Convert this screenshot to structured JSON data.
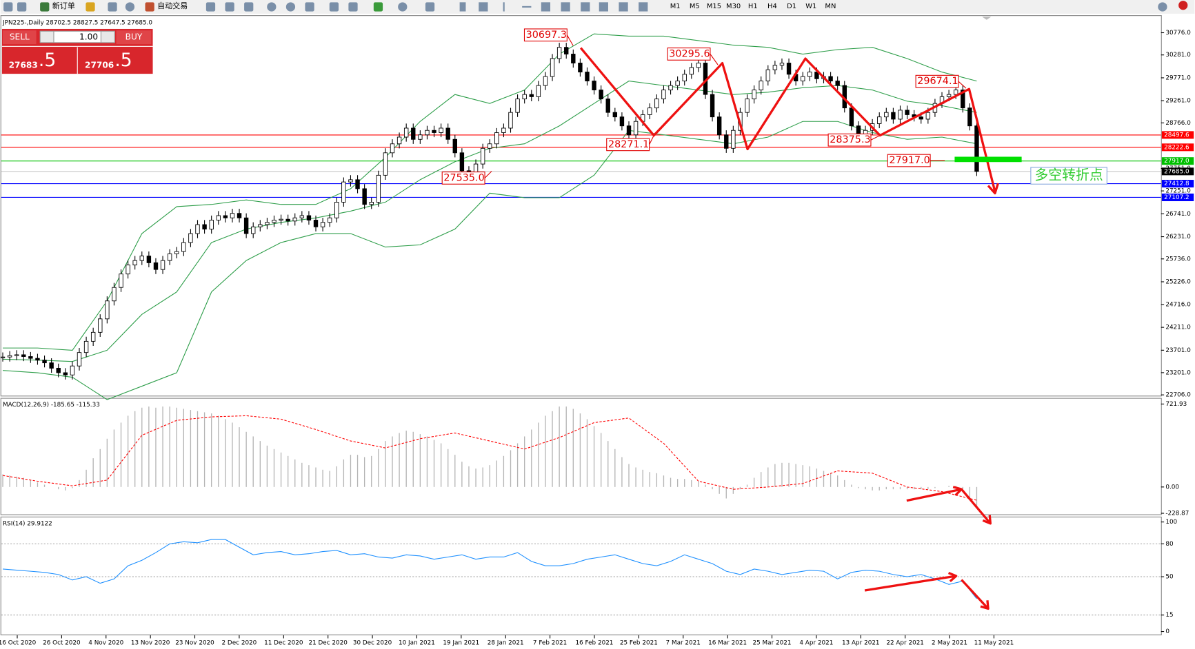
{
  "toolbar": {
    "buttons": [
      "新订单",
      "自动交易"
    ],
    "timeframes": [
      "M1",
      "M5",
      "M15",
      "M30",
      "H1",
      "H4",
      "D1",
      "W1",
      "MN"
    ]
  },
  "trade_panel": {
    "sell": "SELL",
    "lot": "1.00",
    "buy": "BUY",
    "bid_main": "27683",
    "bid_frac": ".5",
    "ask_main": "27706",
    "ask_frac": ".5"
  },
  "chart_data": {
    "type": "candlestick",
    "title": "JPN225-,Daily 28702.5 28827.5 27647.5 27685.0",
    "closes": [
      23550,
      23580,
      23600,
      23560,
      23520,
      23480,
      23420,
      23300,
      23200,
      23150,
      23350,
      23650,
      23900,
      24100,
      24400,
      24800,
      25100,
      25400,
      25600,
      25700,
      25800,
      25650,
      25500,
      25700,
      25850,
      25900,
      26100,
      26300,
      26500,
      26400,
      26600,
      26700,
      26650,
      26750,
      26650,
      26300,
      26450,
      26500,
      26550,
      26600,
      26620,
      26580,
      26650,
      26700,
      26600,
      26450,
      26550,
      26650,
      27000,
      27450,
      27500,
      27300,
      26950,
      27000,
      27600,
      28100,
      28300,
      28450,
      28650,
      28400,
      28500,
      28600,
      28550,
      28650,
      28400,
      28100,
      27700,
      27650,
      27850,
      28200,
      28300,
      28550,
      28650,
      29000,
      29300,
      29400,
      29350,
      29600,
      29800,
      30200,
      30450,
      30300,
      30100,
      29900,
      29700,
      29500,
      29300,
      29000,
      28900,
      28700,
      28500,
      28800,
      28950,
      29100,
      29300,
      29500,
      29600,
      29700,
      29850,
      30000,
      30100,
      29400,
      28900,
      28500,
      28200,
      28600,
      29000,
      29300,
      29500,
      29700,
      29950,
      30050,
      30100,
      29850,
      29700,
      29800,
      29900,
      29750,
      29800,
      29700,
      29600,
      29100,
      28700,
      28500,
      28600,
      28750,
      28900,
      29000,
      28850,
      29050,
      28950,
      28900,
      28850,
      29000,
      29200,
      29350,
      29400,
      29500,
      29100,
      28700,
      27685
    ],
    "ylim": [
      22689,
      31166
    ],
    "yticks": [
      {
        "value": 30776,
        "label": "30776.0"
      },
      {
        "value": 30281,
        "label": "30281.0"
      },
      {
        "value": 29771,
        "label": "29771.0"
      },
      {
        "value": 29261,
        "label": "29261.0"
      },
      {
        "value": 28766,
        "label": "28766.0"
      },
      {
        "value": 27751,
        "label": "27751.0"
      },
      {
        "value": 27251,
        "label": "27251.0"
      },
      {
        "value": 26741,
        "label": "26741.0"
      },
      {
        "value": 26231,
        "label": "26231.0"
      },
      {
        "value": 25736,
        "label": "25736.0"
      },
      {
        "value": 25226,
        "label": "25226.0"
      },
      {
        "value": 24716,
        "label": "24716.0"
      },
      {
        "value": 24211,
        "label": "24211.0"
      },
      {
        "value": 23701,
        "label": "23701.0"
      },
      {
        "value": 23201,
        "label": "23201.0"
      },
      {
        "value": 22706,
        "label": "22706.0"
      }
    ],
    "levels": [
      {
        "value": 28497.6,
        "label": "28497.6",
        "color": "#ff0000"
      },
      {
        "value": 28222.6,
        "label": "28222.6",
        "color": "#ff0000"
      },
      {
        "value": 27917,
        "label": "27917.0",
        "color": "#00c000"
      },
      {
        "value": 27685,
        "label": "27685.0",
        "color": "#000000"
      },
      {
        "value": 27412.8,
        "label": "27412.8",
        "color": "#0000ff"
      },
      {
        "value": 27107.2,
        "label": "27107.2",
        "color": "#0000ff"
      }
    ],
    "bollinger": {
      "color": "#2e9e4a",
      "upper": [
        23750,
        23750,
        23700,
        24800,
        26300,
        26900,
        26950,
        27050,
        26950,
        26950,
        27300,
        28000,
        28800,
        29400,
        29200,
        29500,
        30300,
        30750,
        30700,
        30700,
        30600,
        30500,
        30450,
        30300,
        30400,
        30450,
        30200,
        29900,
        29700
      ],
      "middle": [
        23500,
        23480,
        23450,
        23700,
        24500,
        25000,
        26100,
        26400,
        26550,
        26650,
        26800,
        27000,
        27500,
        27900,
        28200,
        28300,
        28700,
        29200,
        29700,
        29600,
        29500,
        29400,
        29450,
        29550,
        29600,
        29500,
        29250,
        29150,
        29000
      ],
      "lower": [
        23250,
        23200,
        23100,
        22600,
        22900,
        23200,
        25000,
        25700,
        26100,
        26300,
        26300,
        26000,
        26050,
        26400,
        27200,
        27100,
        27100,
        27600,
        28600,
        28500,
        28400,
        28300,
        28450,
        28800,
        28800,
        28550,
        28400,
        28450,
        28300
      ]
    },
    "annotations": [
      "30697.3",
      "30295.6",
      "29674.1",
      "28271.1",
      "28375.3",
      "27917.0",
      "27535.0"
    ],
    "note": "多空转折点",
    "x_labels": [
      "16 Oct 2020",
      "26 Oct 2020",
      "4 Nov 2020",
      "13 Nov 2020",
      "23 Nov 2020",
      "2 Dec 2020",
      "11 Dec 2020",
      "21 Dec 2020",
      "30 Dec 2020",
      "10 Jan 2021",
      "19 Jan 2021",
      "28 Jan 2021",
      "7 Feb 2021",
      "16 Feb 2021",
      "25 Feb 2021",
      "7 Mar 2021",
      "16 Mar 2021",
      "25 Mar 2021",
      "4 Apr 2021",
      "13 Apr 2021",
      "22 Apr 2021",
      "2 May 2021",
      "11 May 2021"
    ]
  },
  "macd": {
    "title": "MACD(12,26,9) -185.65 -115.33",
    "histogram": [
      110,
      100,
      90,
      80,
      60,
      40,
      20,
      0,
      -20,
      -30,
      -10,
      60,
      150,
      250,
      330,
      420,
      500,
      560,
      620,
      660,
      690,
      700,
      690,
      700,
      700,
      690,
      680,
      670,
      660,
      650,
      640,
      620,
      590,
      560,
      520,
      480,
      440,
      400,
      360,
      330,
      300,
      270,
      240,
      210,
      190,
      170,
      150,
      140,
      180,
      240,
      280,
      280,
      260,
      270,
      330,
      400,
      440,
      470,
      490,
      480,
      460,
      440,
      410,
      380,
      330,
      280,
      220,
      180,
      160,
      170,
      190,
      230,
      270,
      320,
      380,
      440,
      500,
      560,
      620,
      660,
      700,
      700,
      680,
      640,
      590,
      530,
      470,
      400,
      330,
      260,
      200,
      170,
      150,
      130,
      120,
      100,
      80,
      70,
      70,
      60,
      50,
      20,
      -20,
      -60,
      -100,
      -60,
      -20,
      20,
      80,
      130,
      170,
      200,
      210,
      210,
      200,
      190,
      180,
      160,
      140,
      120,
      100,
      60,
      20,
      -10,
      -20,
      -30,
      -30,
      -20,
      -20,
      -20,
      -20,
      -20,
      -20,
      -20,
      -10,
      0,
      10,
      10,
      -20,
      -100,
      -185.65
    ],
    "signal": [
      100,
      50,
      10,
      60,
      450,
      580,
      610,
      620,
      590,
      500,
      400,
      340,
      420,
      470,
      400,
      330,
      430,
      560,
      600,
      380,
      50,
      -20,
      0,
      30,
      140,
      120,
      0,
      -40,
      -115.33
    ],
    "hist_color": "#b4b4b4",
    "signal_color": "#ff0000",
    "ylim": [
      -238,
      775
    ],
    "yticks": [
      721.93,
      {
        "value": 0,
        "label": "0.00"
      },
      -228.87
    ]
  },
  "rsi": {
    "title": "RSI(14) 29.9122",
    "values": [
      57,
      56,
      55,
      54,
      52,
      47,
      50,
      44,
      48,
      60,
      65,
      72,
      80,
      82,
      81,
      84,
      84,
      77,
      70,
      72,
      73,
      70,
      71,
      73,
      74,
      70,
      71,
      68,
      67,
      70,
      69,
      66,
      68,
      70,
      66,
      68,
      68,
      72,
      64,
      60,
      60,
      62,
      66,
      68,
      70,
      66,
      62,
      60,
      64,
      70,
      66,
      62,
      55,
      52,
      57,
      55,
      52,
      54,
      56,
      55,
      48,
      54,
      56,
      55,
      52,
      50,
      52,
      48,
      43,
      46,
      29.9122
    ],
    "color": "#1e90ff",
    "ylim": [
      -3.5,
      104.9
    ],
    "yticks": [
      100,
      80,
      50,
      15,
      0
    ],
    "levels": [
      80,
      50,
      15
    ]
  }
}
